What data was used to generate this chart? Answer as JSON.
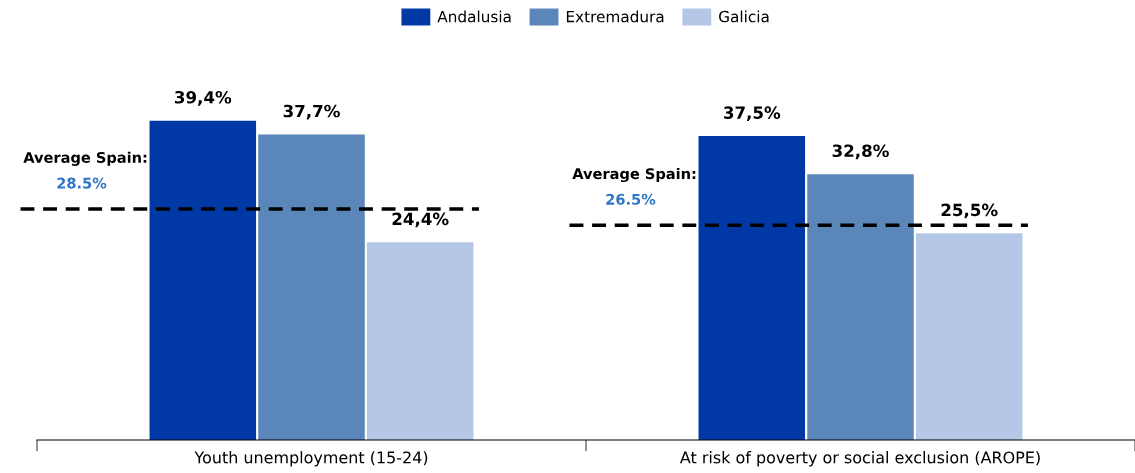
{
  "chart_data": {
    "type": "bar",
    "categories": [
      "Youth unemployment (15-24)",
      "At risk of poverty or social exclusion (AROPE)"
    ],
    "series": [
      {
        "name": "Andalusia",
        "color": "#0039a6",
        "values": [
          39.4,
          37.5
        ],
        "value_labels": [
          "39,4%",
          "37,5%"
        ]
      },
      {
        "name": "Extremadura",
        "color": "#5b86b9",
        "values": [
          37.7,
          32.8
        ],
        "value_labels": [
          "37,7%",
          "32,8%"
        ]
      },
      {
        "name": "Galicia",
        "color": "#b4c7e7",
        "values": [
          24.4,
          25.5
        ],
        "value_labels": [
          "24,4%",
          "25,5%"
        ]
      }
    ],
    "ref_lines": [
      {
        "axis": "y",
        "value": 28.5,
        "label": "Average Spain:\n28.5%",
        "color": "#000000",
        "line_style": "dashed"
      },
      {
        "axis": "y",
        "value": 26.5,
        "label": "Average Spain:\n26.5%",
        "color": "#000000",
        "line_style": "dashed"
      }
    ],
    "legend": "top",
    "grid": false
  }
}
